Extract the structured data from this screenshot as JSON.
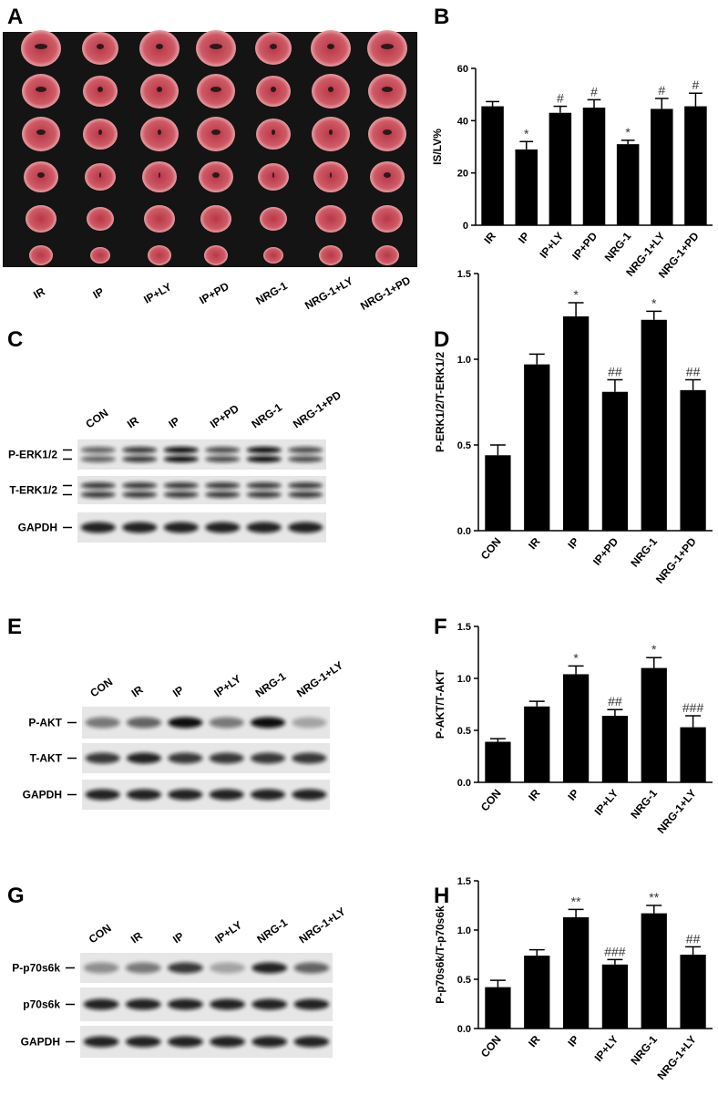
{
  "panel_letters": [
    "A",
    "B",
    "C",
    "D",
    "E",
    "F",
    "G",
    "H"
  ],
  "heart_image": {
    "labels": [
      "IR",
      "IP",
      "IP+LY",
      "IP+PD",
      "NRG-1",
      "NRG-1+LY",
      "NRG-1+PD"
    ]
  },
  "blots": [
    {
      "lanes": [
        "CON",
        "IR",
        "IP",
        "IP+PD",
        "NRG-1",
        "NRG-1+PD"
      ],
      "rows": [
        "P-ERK1/2",
        "T-ERK1/2",
        "GAPDH"
      ]
    },
    {
      "lanes": [
        "CON",
        "IR",
        "IP",
        "IP+LY",
        "NRG-1",
        "NRG-1+LY"
      ],
      "rows": [
        "P-AKT",
        "T-AKT",
        "GAPDH"
      ]
    },
    {
      "lanes": [
        "CON",
        "IR",
        "IP",
        "IP+LY",
        "NRG-1",
        "NRG-1+LY"
      ],
      "rows": [
        "P-p70s6k",
        "p70s6k",
        "GAPDH"
      ]
    }
  ],
  "chart_data": [
    {
      "type": "bar",
      "y_label": "IS/LV%",
      "color": "#000000",
      "categories": [
        "IR",
        "IP",
        "IP+LY",
        "IP+PD",
        "NRG-1",
        "NRG-1+LY",
        "NRG-1+PD"
      ],
      "values": [
        45.5,
        29,
        43,
        45,
        31,
        44.5,
        45.5
      ],
      "errors": [
        1.8,
        3,
        2.5,
        3,
        1.5,
        4,
        5
      ],
      "annotations": [
        null,
        "*",
        "#",
        "#",
        "*",
        "#",
        "#"
      ],
      "ylim": [
        0,
        60
      ],
      "yticks": [
        0,
        20,
        40,
        60
      ]
    },
    {
      "type": "bar",
      "y_label": "P-ERK1/2/T-ERK1/2",
      "color": "#000000",
      "categories": [
        "CON",
        "IR",
        "IP",
        "IP+PD",
        "NRG-1",
        "NRG-1+PD"
      ],
      "values": [
        0.44,
        0.97,
        1.25,
        0.81,
        1.23,
        0.82
      ],
      "errors": [
        0.06,
        0.06,
        0.08,
        0.07,
        0.05,
        0.06
      ],
      "annotations": [
        null,
        null,
        "*",
        "##",
        "*",
        "##"
      ],
      "ylim": [
        0,
        1.5
      ],
      "yticks": [
        {
          "value": 0,
          "label": "0.0"
        },
        0.5,
        {
          "value": 1,
          "label": "1.0"
        },
        1.5
      ]
    },
    {
      "type": "bar",
      "y_label": "P-AKT/T-AKT",
      "color": "#000000",
      "categories": [
        "CON",
        "IR",
        "IP",
        "IP+LY",
        "NRG-1",
        "NRG-1+LY"
      ],
      "values": [
        0.39,
        0.73,
        1.04,
        0.64,
        1.1,
        0.53
      ],
      "errors": [
        0.03,
        0.05,
        0.08,
        0.06,
        0.1,
        0.11
      ],
      "annotations": [
        null,
        null,
        "*",
        "##",
        "*",
        "###"
      ],
      "ylim": [
        0,
        1.5
      ],
      "yticks": [
        {
          "value": 0,
          "label": "0.0"
        },
        0.5,
        {
          "value": 1,
          "label": "1.0"
        },
        1.5
      ]
    },
    {
      "type": "bar",
      "y_label": "P-p70s6k/T-p70s6k",
      "color": "#000000",
      "categories": [
        "CON",
        "IR",
        "IP",
        "IP+LY",
        "NRG-1",
        "NRG-1+LY"
      ],
      "values": [
        0.42,
        0.74,
        1.13,
        0.65,
        1.17,
        0.75
      ],
      "errors": [
        0.07,
        0.06,
        0.08,
        0.05,
        0.08,
        0.08
      ],
      "annotations": [
        null,
        null,
        "**",
        "###",
        "**",
        "##"
      ],
      "ylim": [
        0,
        1.5
      ],
      "yticks": [
        {
          "value": 0,
          "label": "0.0"
        },
        0.5,
        {
          "value": 1,
          "label": "1.0"
        },
        1.5
      ]
    }
  ]
}
